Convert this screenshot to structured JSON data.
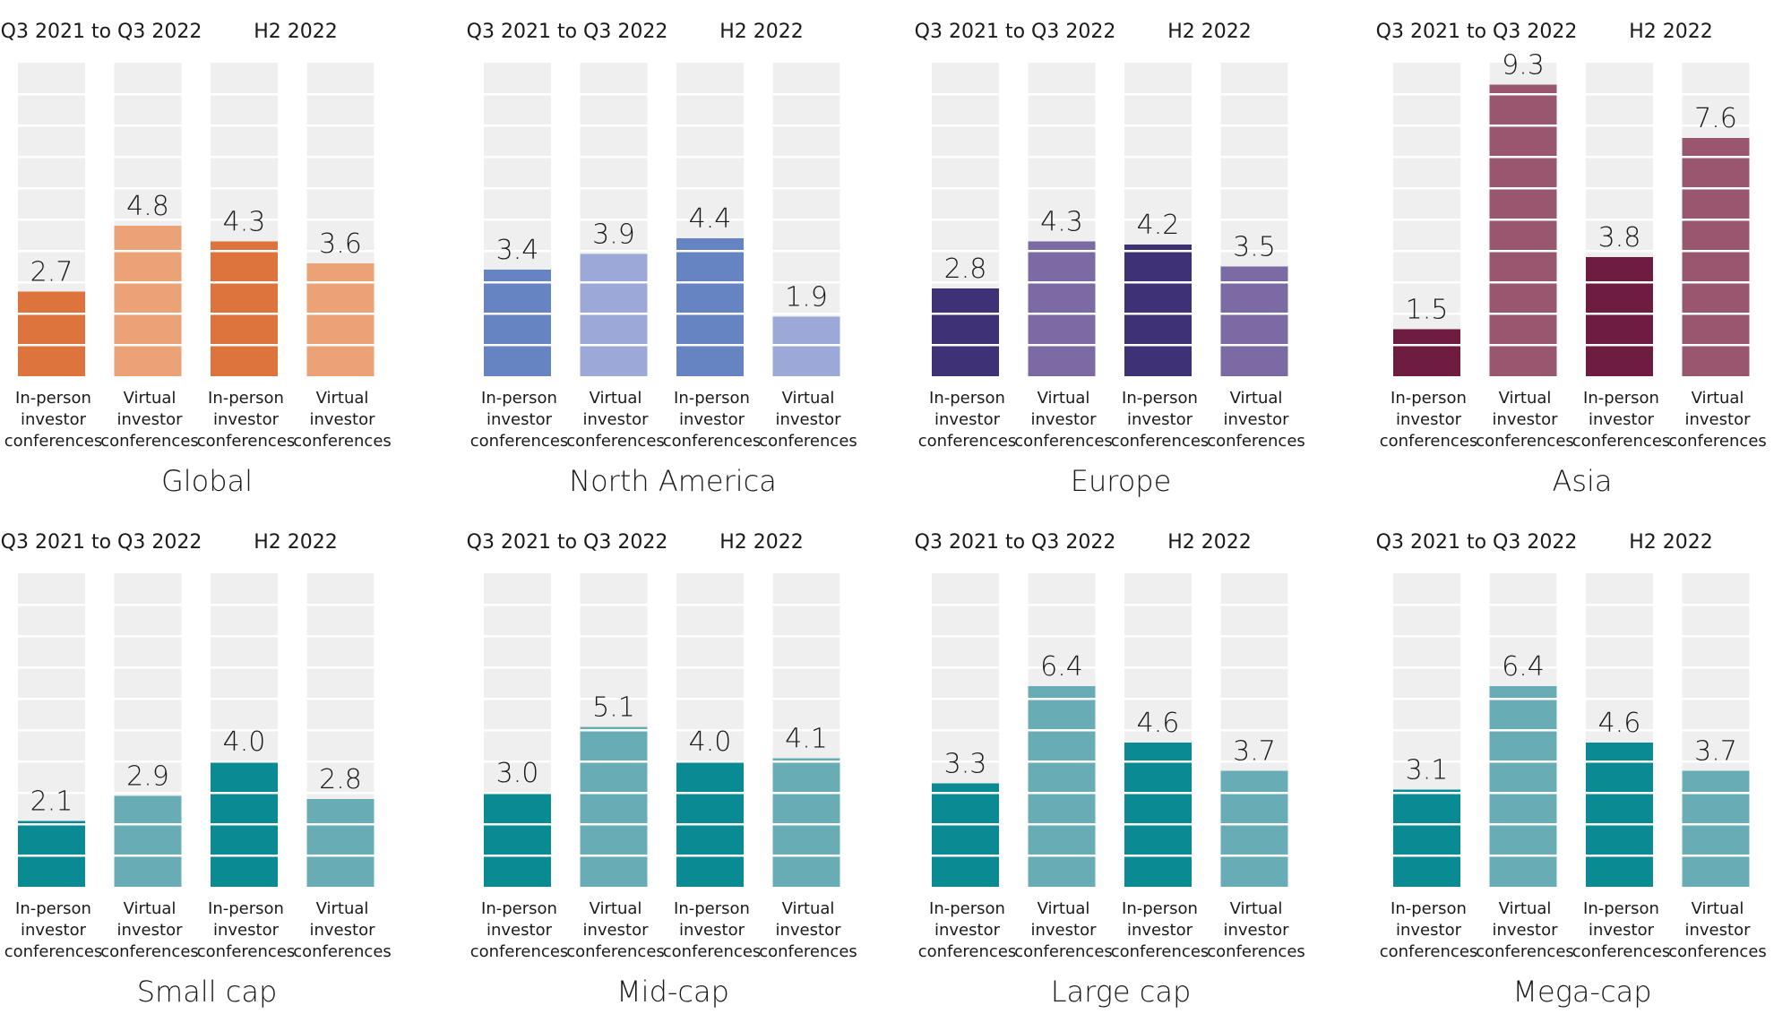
{
  "chart_data": [
    {
      "type": "bar",
      "title": "Global",
      "period_labels": [
        "Q3 2021 to Q3 2022",
        "H2 2022"
      ],
      "categories": [
        "In-person investor conferences",
        "Virtual investor conferences",
        "In-person investor conferences",
        "Virtual investor conferences"
      ],
      "category_lines": [
        [
          "In-person",
          "investor",
          "conferences"
        ],
        [
          "Virtual",
          "investor",
          "conferences"
        ],
        [
          "In-person",
          "investor",
          "conferences"
        ],
        [
          "Virtual",
          "investor",
          "conferences"
        ]
      ],
      "values": [
        2.7,
        4.8,
        4.3,
        3.6
      ],
      "value_labels": [
        "2.7",
        "4.8",
        "4.3",
        "3.6"
      ],
      "ylim": [
        0,
        10
      ],
      "colors": {
        "in_person": "#dd743e",
        "virtual": "#eaa276",
        "background": "#efefef"
      }
    },
    {
      "type": "bar",
      "title": "North America",
      "period_labels": [
        "Q3 2021 to Q3 2022",
        "H2 2022"
      ],
      "categories": [
        "In-person investor conferences",
        "Virtual investor conferences",
        "In-person investor conferences",
        "Virtual investor conferences"
      ],
      "category_lines": [
        [
          "In-person",
          "investor",
          "conferences"
        ],
        [
          "Virtual",
          "investor",
          "conferences"
        ],
        [
          "In-person",
          "investor",
          "conferences"
        ],
        [
          "Virtual",
          "investor",
          "conferences"
        ]
      ],
      "values": [
        3.4,
        3.9,
        4.4,
        1.9
      ],
      "value_labels": [
        "3.4",
        "3.9",
        "4.4",
        "1.9"
      ],
      "ylim": [
        0,
        10
      ],
      "colors": {
        "in_person": "#6683c2",
        "virtual": "#9ba8d8",
        "background": "#efefef"
      }
    },
    {
      "type": "bar",
      "title": "Europe",
      "period_labels": [
        "Q3 2021 to Q3 2022",
        "H2 2022"
      ],
      "categories": [
        "In-person investor conferences",
        "Virtual investor conferences",
        "In-person investor conferences",
        "Virtual investor conferences"
      ],
      "category_lines": [
        [
          "In-person",
          "investor",
          "conferences"
        ],
        [
          "Virtual",
          "investor",
          "conferences"
        ],
        [
          "In-person",
          "investor",
          "conferences"
        ],
        [
          "Virtual",
          "investor",
          "conferences"
        ]
      ],
      "values": [
        2.8,
        4.3,
        4.2,
        3.5
      ],
      "value_labels": [
        "2.8",
        "4.3",
        "4.2",
        "3.5"
      ],
      "ylim": [
        0,
        10
      ],
      "colors": {
        "in_person": "#3f3176",
        "virtual": "#7b6aa3",
        "background": "#efefef"
      }
    },
    {
      "type": "bar",
      "title": "Asia",
      "period_labels": [
        "Q3 2021 to Q3 2022",
        "H2 2022"
      ],
      "categories": [
        "In-person investor conferences",
        "Virtual investor conferences",
        "In-person investor conferences",
        "Virtual investor conferences"
      ],
      "category_lines": [
        [
          "In-person",
          "investor",
          "conferences"
        ],
        [
          "Virtual",
          "investor",
          "conferences"
        ],
        [
          "In-person",
          "investor",
          "conferences"
        ],
        [
          "Virtual",
          "investor",
          "conferences"
        ]
      ],
      "values": [
        1.5,
        9.3,
        3.8,
        7.6
      ],
      "value_labels": [
        "1.5",
        "9.3",
        "3.8",
        "7.6"
      ],
      "ylim": [
        0,
        10
      ],
      "colors": {
        "in_person": "#6e1d41",
        "virtual": "#98566f",
        "background": "#efefef"
      }
    },
    {
      "type": "bar",
      "title": "Small cap",
      "period_labels": [
        "Q3 2021 to Q3 2022",
        "H2 2022"
      ],
      "categories": [
        "In-person investor conferences",
        "Virtual investor conferences",
        "In-person investor conferences",
        "Virtual investor conferences"
      ],
      "category_lines": [
        [
          "In-person",
          "investor",
          "conferences"
        ],
        [
          "Virtual",
          "investor",
          "conferences"
        ],
        [
          "In-person",
          "investor",
          "conferences"
        ],
        [
          "Virtual",
          "investor",
          "conferences"
        ]
      ],
      "values": [
        2.1,
        2.9,
        4.0,
        2.8
      ],
      "value_labels": [
        "2.1",
        "2.9",
        "4.0",
        "2.8"
      ],
      "ylim": [
        0,
        10
      ],
      "colors": {
        "in_person": "#0a8a93",
        "virtual": "#68adb5",
        "background": "#efefef"
      }
    },
    {
      "type": "bar",
      "title": "Mid-cap",
      "period_labels": [
        "Q3 2021 to Q3 2022",
        "H2 2022"
      ],
      "categories": [
        "In-person investor conferences",
        "Virtual investor conferences",
        "In-person investor conferences",
        "Virtual investor conferences"
      ],
      "category_lines": [
        [
          "In-person",
          "investor",
          "conferences"
        ],
        [
          "Virtual",
          "investor",
          "conferences"
        ],
        [
          "In-person",
          "investor",
          "conferences"
        ],
        [
          "Virtual",
          "investor",
          "conferences"
        ]
      ],
      "values": [
        3.0,
        5.1,
        4.0,
        4.1
      ],
      "value_labels": [
        "3.0",
        "5.1",
        "4.0",
        "4.1"
      ],
      "ylim": [
        0,
        10
      ],
      "colors": {
        "in_person": "#0a8a93",
        "virtual": "#68adb5",
        "background": "#efefef"
      }
    },
    {
      "type": "bar",
      "title": "Large cap",
      "period_labels": [
        "Q3 2021 to Q3 2022",
        "H2 2022"
      ],
      "categories": [
        "In-person investor conferences",
        "Virtual investor conferences",
        "In-person investor conferences",
        "Virtual investor conferences"
      ],
      "category_lines": [
        [
          "In-person",
          "investor",
          "conferences"
        ],
        [
          "Virtual",
          "investor",
          "conferences"
        ],
        [
          "In-person",
          "investor",
          "conferences"
        ],
        [
          "Virtual",
          "investor",
          "conferences"
        ]
      ],
      "values": [
        3.3,
        6.4,
        4.6,
        3.7
      ],
      "value_labels": [
        "3.3",
        "6.4",
        "4.6",
        "3.7"
      ],
      "ylim": [
        0,
        10
      ],
      "colors": {
        "in_person": "#0a8a93",
        "virtual": "#68adb5",
        "background": "#efefef"
      }
    },
    {
      "type": "bar",
      "title": "Mega-cap",
      "period_labels": [
        "Q3 2021 to Q3 2022",
        "H2 2022"
      ],
      "categories": [
        "In-person investor conferences",
        "Virtual investor conferences",
        "In-person investor conferences",
        "Virtual investor conferences"
      ],
      "category_lines": [
        [
          "In-person",
          "investor",
          "conferences"
        ],
        [
          "Virtual",
          "investor",
          "conferences"
        ],
        [
          "In-person",
          "investor",
          "conferences"
        ],
        [
          "Virtual",
          "investor",
          "conferences"
        ]
      ],
      "values": [
        3.1,
        6.4,
        4.6,
        3.7
      ],
      "value_labels": [
        "3.1",
        "6.4",
        "4.6",
        "3.7"
      ],
      "ylim": [
        0,
        10
      ],
      "colors": {
        "in_person": "#0a8a93",
        "virtual": "#68adb5",
        "background": "#efefef"
      }
    }
  ]
}
